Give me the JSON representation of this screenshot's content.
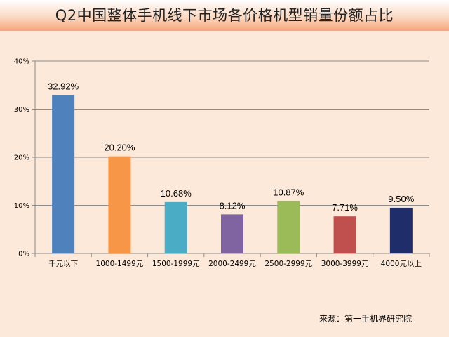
{
  "chart_data": {
    "type": "bar",
    "title": "Q2中国整体手机线下市场各价格机型销量份额占比",
    "categories": [
      "千元以下",
      "1000-1499元",
      "1500-1999元",
      "2000-2499元",
      "2500-2999元",
      "3000-3999元",
      "4000元以上"
    ],
    "values": [
      32.92,
      20.2,
      10.68,
      8.12,
      10.87,
      7.71,
      9.5
    ],
    "value_labels": [
      "32.92%",
      "20.20%",
      "10.68%",
      "8.12%",
      "10.87%",
      "7.71%",
      "9.50%"
    ],
    "bar_colors": [
      "#4f81bd",
      "#f79646",
      "#4bacc6",
      "#8064a2",
      "#9bbb59",
      "#c0504d",
      "#1f2d6b"
    ],
    "yticks": [
      "0%",
      "10%",
      "20%",
      "30%",
      "40%"
    ],
    "ytick_values": [
      0,
      10,
      20,
      30,
      40
    ],
    "ylim": [
      0,
      40
    ],
    "grid": true,
    "xlabel": "",
    "ylabel": ""
  },
  "source": "来源：第一手机界研究院"
}
